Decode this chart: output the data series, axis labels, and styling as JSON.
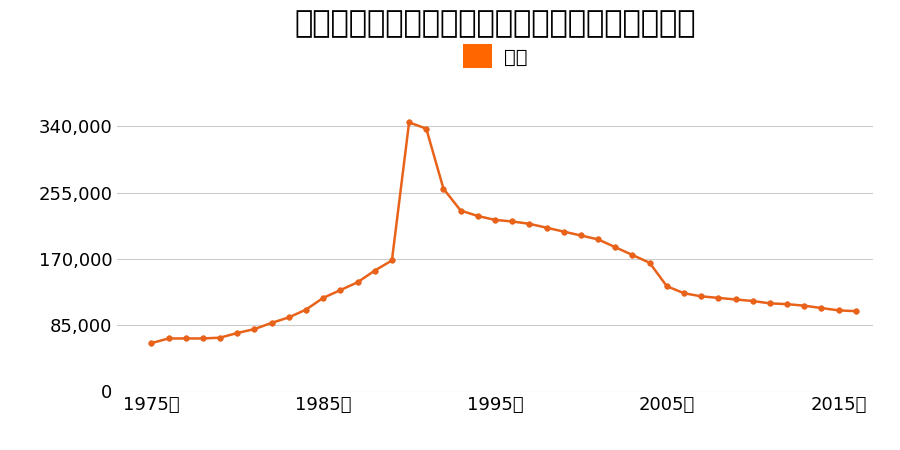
{
  "title": "大阪府交野市大字私市２０７０番２７の地価推移",
  "legend_label": "価格",
  "line_color": "#e8621a",
  "marker_color": "#e8621a",
  "legend_marker_color": "#ff6600",
  "background_color": "#ffffff",
  "grid_color": "#cccccc",
  "yticks": [
    0,
    85000,
    170000,
    255000,
    340000
  ],
  "ylim": [
    0,
    375000
  ],
  "xticks": [
    1975,
    1985,
    1995,
    2005,
    2015
  ],
  "xlim": [
    1973,
    2017
  ],
  "years": [
    1975,
    1976,
    1977,
    1978,
    1979,
    1980,
    1981,
    1982,
    1983,
    1984,
    1985,
    1986,
    1987,
    1988,
    1989,
    1990,
    1991,
    1992,
    1993,
    1994,
    1995,
    1996,
    1997,
    1998,
    1999,
    2000,
    2001,
    2002,
    2003,
    2004,
    2005,
    2006,
    2007,
    2008,
    2009,
    2010,
    2011,
    2012,
    2013,
    2014,
    2015,
    2016
  ],
  "prices": [
    62000,
    68000,
    68000,
    68000,
    69000,
    75000,
    80000,
    88000,
    95000,
    105000,
    120000,
    130000,
    140000,
    155000,
    168000,
    345000,
    337000,
    260000,
    232000,
    225000,
    220000,
    218000,
    215000,
    210000,
    205000,
    200000,
    195000,
    185000,
    175000,
    165000,
    135000,
    126000,
    122000,
    120000,
    118000,
    116000,
    113000,
    112000,
    110000,
    107000,
    104000,
    103000
  ],
  "title_fontsize": 22,
  "tick_fontsize": 13,
  "legend_fontsize": 14
}
